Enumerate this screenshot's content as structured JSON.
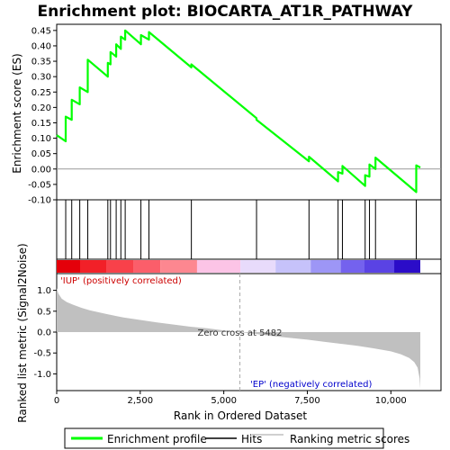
{
  "chart_data": {
    "type": "line",
    "title": "Enrichment plot: BIOCARTA_AT1R_PATHWAY",
    "enrichment_panel": {
      "ylabel": "Enrichment score (ES)",
      "ylim": [
        -0.1,
        0.47
      ],
      "yticks": [
        "0.45",
        "0.40",
        "0.35",
        "0.30",
        "0.25",
        "0.20",
        "0.15",
        "0.10",
        "0.05",
        "0.00",
        "-0.05",
        "-0.10"
      ],
      "ytick_values": [
        0.45,
        0.4,
        0.35,
        0.3,
        0.25,
        0.2,
        0.15,
        0.1,
        0.05,
        0.0,
        -0.05,
        -0.1
      ],
      "color": "#00ff00",
      "series": [
        {
          "name": "Enrichment profile",
          "x": [
            0,
            270,
            270,
            450,
            450,
            690,
            690,
            930,
            930,
            1530,
            1530,
            1610,
            1610,
            1780,
            1780,
            1920,
            1920,
            2050,
            2050,
            2520,
            2520,
            2760,
            2760,
            4030,
            4030,
            5980,
            5980,
            7550,
            7550,
            8420,
            8420,
            8550,
            8550,
            9230,
            9230,
            9360,
            9360,
            9540,
            9540,
            10760,
            10760,
            10880
          ],
          "values": [
            0.11,
            0.09,
            0.17,
            0.16,
            0.225,
            0.21,
            0.265,
            0.25,
            0.355,
            0.3,
            0.345,
            0.34,
            0.38,
            0.365,
            0.405,
            0.39,
            0.43,
            0.42,
            0.45,
            0.405,
            0.435,
            0.42,
            0.445,
            0.33,
            0.34,
            0.165,
            0.16,
            0.025,
            0.04,
            -0.04,
            -0.01,
            -0.015,
            0.01,
            -0.055,
            -0.02,
            -0.025,
            0.015,
            0.0,
            0.037,
            -0.075,
            0.012,
            0.005
          ]
        }
      ]
    },
    "hits": [
      0,
      270,
      450,
      690,
      930,
      1530,
      1610,
      1780,
      1920,
      2050,
      2520,
      2760,
      4030,
      5980,
      7550,
      8420,
      8550,
      9230,
      9360,
      9540,
      10760
    ],
    "rank_bar": {
      "segments": [
        {
          "from": 0,
          "to": 700,
          "color": "#e4000a"
        },
        {
          "from": 700,
          "to": 1500,
          "color": "#f22028"
        },
        {
          "from": 1500,
          "to": 2300,
          "color": "#f8414a"
        },
        {
          "from": 2300,
          "to": 3100,
          "color": "#fb5e6a"
        },
        {
          "from": 3100,
          "to": 4200,
          "color": "#fd8790"
        },
        {
          "from": 4200,
          "to": 5500,
          "color": "#fcc4e6"
        },
        {
          "from": 5500,
          "to": 6550,
          "color": "#e8dbfb"
        },
        {
          "from": 6550,
          "to": 7600,
          "color": "#c6c2fa"
        },
        {
          "from": 7600,
          "to": 8500,
          "color": "#9d96f6"
        },
        {
          "from": 8500,
          "to": 9200,
          "color": "#7462ee"
        },
        {
          "from": 9200,
          "to": 10100,
          "color": "#5a43e4"
        },
        {
          "from": 10100,
          "to": 10880,
          "color": "#2b0cc8"
        }
      ]
    },
    "metric_panel": {
      "ylabel": "Ranked list metric (Signal2Noise)",
      "ylim": [
        -1.4,
        1.4
      ],
      "yticks": [
        "1.0",
        "0.5",
        "0.0",
        "-0.5",
        "-1.0"
      ],
      "ytick_values": [
        1.0,
        0.5,
        0.0,
        -0.5,
        -1.0
      ],
      "fill_color": "#c0c0c0",
      "profile": {
        "x": [
          0,
          50,
          150,
          300,
          500,
          750,
          1000,
          1500,
          2000,
          2500,
          3000,
          3500,
          4000,
          4500,
          5000,
          5482,
          6000,
          6500,
          7000,
          7500,
          8000,
          8500,
          9000,
          9500,
          10000,
          10300,
          10550,
          10700,
          10800,
          10860,
          10880
        ],
        "values": [
          1.05,
          0.92,
          0.8,
          0.72,
          0.65,
          0.58,
          0.52,
          0.43,
          0.35,
          0.29,
          0.23,
          0.18,
          0.13,
          0.09,
          0.04,
          0.0,
          -0.05,
          -0.1,
          -0.14,
          -0.18,
          -0.23,
          -0.28,
          -0.33,
          -0.39,
          -0.46,
          -0.53,
          -0.62,
          -0.72,
          -0.85,
          -1.1,
          -1.35
        ]
      },
      "zero_cross": 5482,
      "zero_cross_label": "Zero cross at 5482",
      "pos_label": "'IUP' (positively correlated)",
      "neg_label": "'EP' (negatively correlated)",
      "pos_color": "#cc0000",
      "neg_color": "#0000cc"
    },
    "xlabel": "Rank in Dataset",
    "xlabel_full": "Rank in Ordered Dataset",
    "xlim": [
      0,
      11500
    ],
    "xticks": [
      "0",
      "2,500",
      "5,000",
      "7,500",
      "10,000"
    ],
    "xtick_values": [
      0,
      2500,
      5000,
      7500,
      10000
    ],
    "legend": {
      "position": "bottom",
      "items": [
        {
          "label": "Enrichment profile",
          "color": "#00ff00"
        },
        {
          "label": "Hits",
          "color": "#000000"
        },
        {
          "label": "Ranking metric scores",
          "color": "#c0c0c0"
        }
      ]
    }
  }
}
